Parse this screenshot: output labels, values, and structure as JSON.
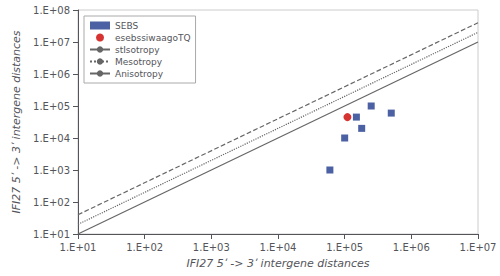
{
  "chart_data": {
    "type": "scatter",
    "xlabel": "IFI27 5ʹ -> 3ʹ intergene distances",
    "ylabel": "IFI27 5ʹ -> 3ʹ intergene distances",
    "log": true,
    "grid": false,
    "legend": "upper left",
    "xlim": [
      10,
      10000000
    ],
    "ylim": [
      10,
      100000000
    ],
    "xticks": [
      {
        "value": 10,
        "label": "1.E+01"
      },
      {
        "value": 100,
        "label": "1.E+02"
      },
      {
        "value": 1000,
        "label": "1.E+03"
      },
      {
        "value": 10000,
        "label": "1.E+04"
      },
      {
        "value": 100000,
        "label": "1.E+05"
      },
      {
        "value": 1000000,
        "label": "1.E+06"
      },
      {
        "value": 10000000,
        "label": "1.E+07"
      }
    ],
    "yticks": [
      {
        "value": 10,
        "label": "1.E+01"
      },
      {
        "value": 100,
        "label": "1.E+02"
      },
      {
        "value": 1000,
        "label": "1.E+03"
      },
      {
        "value": 10000,
        "label": "1.E+04"
      },
      {
        "value": 100000,
        "label": "1.E+05"
      },
      {
        "value": 1000000,
        "label": "1.E+06"
      },
      {
        "value": 10000000,
        "label": "1.E+07"
      },
      {
        "value": 100000000,
        "label": "1.E+08"
      }
    ],
    "series": [
      {
        "name": "SEBS",
        "type": "scatter",
        "marker": "square",
        "color": "#1f3a8c",
        "x": [
          60000,
          100000,
          150000,
          180000,
          250000,
          500000
        ],
        "values": [
          1000,
          10000,
          45000,
          20000,
          100000,
          60000
        ]
      },
      {
        "name": "esebssiwaagoTQ",
        "type": "scatter",
        "marker": "circle",
        "color": "#cc0000",
        "x": [
          110000
        ],
        "values": [
          45000
        ]
      },
      {
        "name": "stIsotropy",
        "type": "line",
        "line_style": "solid",
        "color": "#666666",
        "x": [
          10,
          10000000
        ],
        "values": [
          10,
          10000000
        ]
      },
      {
        "name": "Mesotropy",
        "type": "line",
        "line_style": "dotted",
        "color": "#666666",
        "x": [
          10,
          10000000
        ],
        "values": [
          20,
          20000000
        ]
      },
      {
        "name": "Anisotropy",
        "type": "line",
        "line_style": "dashed",
        "color": "#666666",
        "x": [
          10,
          10000000
        ],
        "values": [
          40,
          40000000
        ]
      }
    ]
  }
}
